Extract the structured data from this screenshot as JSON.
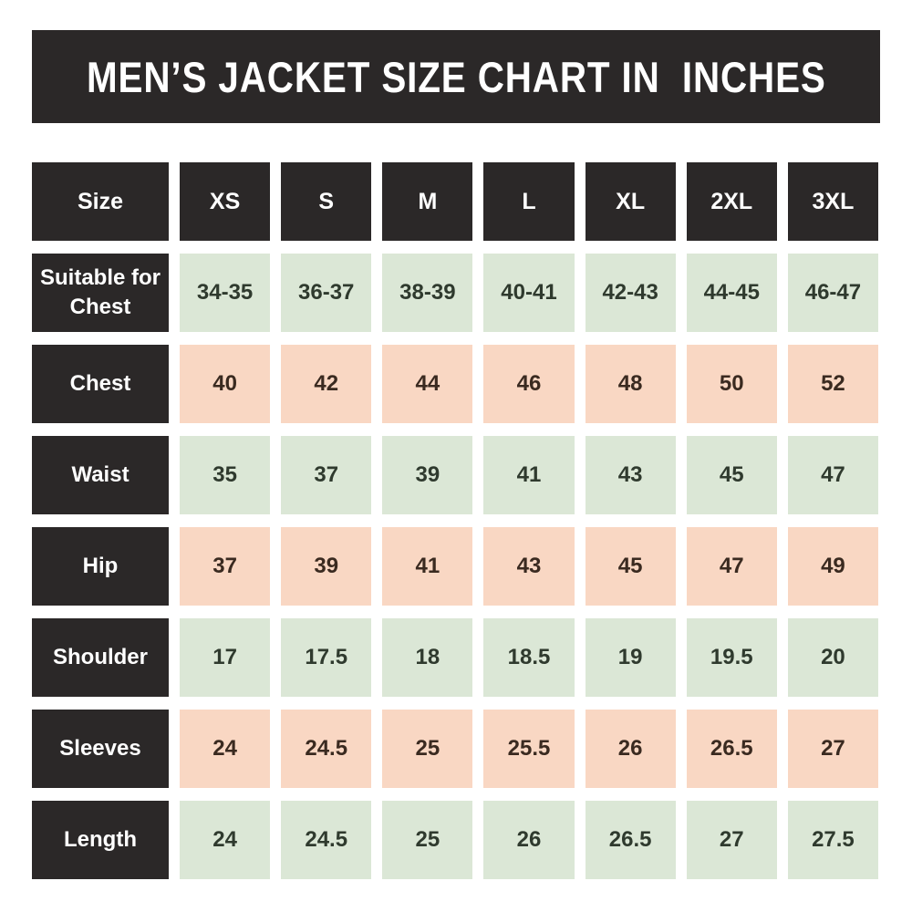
{
  "title": "MEN’S JACKET SIZE CHART IN  INCHES",
  "colors": {
    "dark": "#2b2828",
    "green": "#dbe7d6",
    "pink": "#f9d7c3",
    "green_text": "#2f3a2e",
    "pink_text": "#3a2a20",
    "header_text": "#ffffff",
    "page_bg": "#ffffff"
  },
  "chart_data": {
    "type": "table",
    "title": "MEN’S JACKET SIZE CHART IN  INCHES",
    "units": "inches",
    "header": [
      "Size",
      "XS",
      "S",
      "M",
      "L",
      "XL",
      "2XL",
      "3XL"
    ],
    "rows": [
      {
        "label": "Suitable for Chest",
        "tone": "green",
        "values": [
          "34-35",
          "36-37",
          "38-39",
          "40-41",
          "42-43",
          "44-45",
          "46-47"
        ]
      },
      {
        "label": "Chest",
        "tone": "pink",
        "values": [
          "40",
          "42",
          "44",
          "46",
          "48",
          "50",
          "52"
        ]
      },
      {
        "label": "Waist",
        "tone": "green",
        "values": [
          "35",
          "37",
          "39",
          "41",
          "43",
          "45",
          "47"
        ]
      },
      {
        "label": "Hip",
        "tone": "pink",
        "values": [
          "37",
          "39",
          "41",
          "43",
          "45",
          "47",
          "49"
        ]
      },
      {
        "label": "Shoulder",
        "tone": "green",
        "values": [
          "17",
          "17.5",
          "18",
          "18.5",
          "19",
          "19.5",
          "20"
        ]
      },
      {
        "label": "Sleeves",
        "tone": "pink",
        "values": [
          "24",
          "24.5",
          "25",
          "25.5",
          "26",
          "26.5",
          "27"
        ]
      },
      {
        "label": "Length",
        "tone": "green",
        "values": [
          "24",
          "24.5",
          "25",
          "26",
          "26.5",
          "27",
          "27.5"
        ]
      }
    ]
  }
}
